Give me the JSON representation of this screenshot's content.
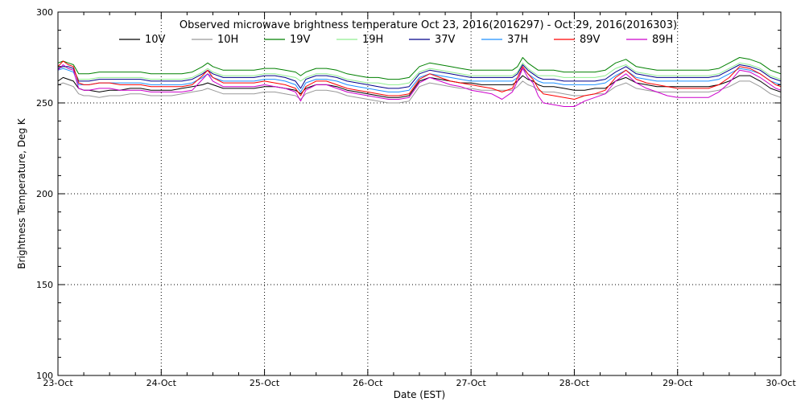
{
  "chart_data": {
    "type": "line",
    "title": "Observed microwave brightness temperature Oct 23, 2016(2016297) - Oct 29, 2016(2016303)",
    "xlabel": "Date (EST)",
    "ylabel": "Brightness Temperature, Deg K",
    "ylim": [
      100,
      300
    ],
    "xlim": [
      0,
      7
    ],
    "yticks": [
      100,
      150,
      200,
      250,
      300
    ],
    "xticks": [
      {
        "x": 0,
        "label": "23-Oct"
      },
      {
        "x": 1,
        "label": "24-Oct"
      },
      {
        "x": 2,
        "label": "25-Oct"
      },
      {
        "x": 3,
        "label": "26-Oct"
      },
      {
        "x": 4,
        "label": "27-Oct"
      },
      {
        "x": 5,
        "label": "28-Oct"
      },
      {
        "x": 6,
        "label": "29-Oct"
      },
      {
        "x": 7,
        "label": "30-Oct"
      }
    ],
    "grid": true,
    "legend_position": "top",
    "x": [
      0.0,
      0.05,
      0.1,
      0.15,
      0.2,
      0.25,
      0.3,
      0.4,
      0.5,
      0.6,
      0.7,
      0.8,
      0.9,
      1.0,
      1.1,
      1.2,
      1.3,
      1.4,
      1.45,
      1.5,
      1.6,
      1.7,
      1.8,
      1.9,
      2.0,
      2.1,
      2.2,
      2.3,
      2.35,
      2.4,
      2.5,
      2.6,
      2.7,
      2.8,
      2.9,
      3.0,
      3.1,
      3.2,
      3.3,
      3.4,
      3.5,
      3.6,
      3.7,
      3.8,
      3.9,
      4.0,
      4.1,
      4.2,
      4.3,
      4.4,
      4.45,
      4.5,
      4.55,
      4.6,
      4.65,
      4.7,
      4.8,
      4.9,
      5.0,
      5.1,
      5.2,
      5.3,
      5.4,
      5.5,
      5.6,
      5.7,
      5.8,
      5.9,
      6.0,
      6.1,
      6.2,
      6.3,
      6.4,
      6.5,
      6.6,
      6.7,
      6.8,
      6.85,
      6.9,
      6.95,
      7.0
    ],
    "series": [
      {
        "name": "10V",
        "color": "#000000",
        "values": [
          262,
          264,
          263,
          262,
          258,
          257,
          257,
          256,
          257,
          257,
          258,
          258,
          257,
          257,
          257,
          258,
          259,
          260,
          261,
          260,
          258,
          258,
          258,
          258,
          259,
          259,
          258,
          257,
          255,
          258,
          260,
          260,
          259,
          257,
          256,
          255,
          254,
          253,
          253,
          254,
          262,
          264,
          263,
          262,
          261,
          261,
          260,
          260,
          260,
          260,
          262,
          265,
          263,
          262,
          260,
          259,
          259,
          258,
          257,
          257,
          258,
          258,
          262,
          264,
          261,
          260,
          259,
          259,
          259,
          259,
          259,
          259,
          260,
          262,
          265,
          265,
          262,
          260,
          258,
          257,
          256
        ]
      },
      {
        "name": "10H",
        "color": "#999999",
        "values": [
          260,
          261,
          260,
          259,
          255,
          254,
          254,
          253,
          254,
          254,
          255,
          255,
          254,
          254,
          254,
          255,
          256,
          257,
          258,
          257,
          255,
          255,
          255,
          255,
          256,
          256,
          255,
          254,
          252,
          255,
          257,
          257,
          256,
          254,
          253,
          252,
          251,
          250,
          250,
          251,
          259,
          261,
          260,
          259,
          258,
          258,
          257,
          257,
          257,
          257,
          259,
          262,
          260,
          259,
          257,
          256,
          256,
          255,
          254,
          254,
          255,
          255,
          259,
          261,
          258,
          257,
          256,
          256,
          256,
          256,
          256,
          256,
          257,
          259,
          262,
          262,
          259,
          257,
          255,
          254,
          253
        ]
      },
      {
        "name": "19V",
        "color": "#008000",
        "values": [
          272,
          273,
          272,
          271,
          266,
          266,
          266,
          267,
          267,
          267,
          267,
          267,
          266,
          266,
          266,
          266,
          267,
          270,
          272,
          270,
          268,
          268,
          268,
          268,
          269,
          269,
          268,
          267,
          265,
          267,
          269,
          269,
          268,
          266,
          265,
          264,
          264,
          263,
          263,
          264,
          270,
          272,
          271,
          270,
          269,
          268,
          268,
          268,
          268,
          268,
          270,
          275,
          272,
          270,
          268,
          268,
          268,
          267,
          267,
          267,
          267,
          268,
          272,
          274,
          270,
          269,
          268,
          268,
          268,
          268,
          268,
          268,
          269,
          272,
          275,
          274,
          272,
          270,
          268,
          267,
          266
        ]
      },
      {
        "name": "19H",
        "color": "#90ee90",
        "values": [
          270,
          270,
          269,
          268,
          263,
          263,
          263,
          264,
          264,
          264,
          264,
          264,
          263,
          263,
          263,
          263,
          264,
          267,
          269,
          267,
          265,
          265,
          265,
          265,
          266,
          266,
          265,
          264,
          262,
          264,
          266,
          266,
          265,
          263,
          262,
          261,
          261,
          260,
          260,
          261,
          267,
          269,
          268,
          267,
          266,
          265,
          265,
          265,
          265,
          265,
          267,
          272,
          269,
          267,
          265,
          265,
          265,
          264,
          264,
          264,
          264,
          265,
          269,
          271,
          267,
          266,
          265,
          265,
          265,
          265,
          265,
          265,
          266,
          269,
          272,
          271,
          269,
          267,
          265,
          264,
          263
        ]
      },
      {
        "name": "37V",
        "color": "#00008b",
        "values": [
          269,
          270,
          270,
          269,
          262,
          262,
          262,
          263,
          263,
          263,
          263,
          263,
          262,
          262,
          262,
          262,
          263,
          266,
          268,
          266,
          264,
          264,
          264,
          264,
          265,
          265,
          264,
          262,
          258,
          263,
          265,
          265,
          264,
          262,
          261,
          260,
          259,
          258,
          258,
          259,
          266,
          268,
          267,
          266,
          265,
          264,
          264,
          264,
          264,
          264,
          266,
          271,
          268,
          266,
          264,
          263,
          263,
          262,
          262,
          262,
          262,
          263,
          267,
          270,
          266,
          265,
          264,
          264,
          264,
          264,
          264,
          264,
          265,
          268,
          271,
          270,
          268,
          266,
          264,
          263,
          262
        ]
      },
      {
        "name": "37H",
        "color": "#1e90ff",
        "values": [
          268,
          269,
          268,
          267,
          260,
          260,
          260,
          261,
          261,
          261,
          261,
          261,
          260,
          260,
          260,
          260,
          261,
          264,
          266,
          264,
          262,
          262,
          262,
          262,
          263,
          263,
          262,
          260,
          256,
          261,
          263,
          263,
          262,
          260,
          259,
          258,
          257,
          256,
          256,
          257,
          264,
          266,
          265,
          264,
          263,
          262,
          262,
          262,
          262,
          262,
          264,
          269,
          266,
          264,
          262,
          261,
          261,
          260,
          260,
          260,
          260,
          261,
          265,
          268,
          264,
          263,
          262,
          262,
          262,
          262,
          262,
          262,
          263,
          266,
          269,
          268,
          266,
          264,
          262,
          261,
          260
        ]
      },
      {
        "name": "89V",
        "color": "#ff0000",
        "values": [
          270,
          273,
          271,
          270,
          261,
          260,
          260,
          261,
          261,
          260,
          260,
          260,
          259,
          259,
          259,
          259,
          260,
          265,
          268,
          264,
          261,
          261,
          261,
          261,
          262,
          261,
          260,
          258,
          254,
          259,
          262,
          262,
          260,
          258,
          257,
          256,
          255,
          254,
          254,
          255,
          263,
          266,
          264,
          262,
          261,
          260,
          259,
          258,
          256,
          258,
          264,
          270,
          266,
          263,
          258,
          255,
          254,
          253,
          252,
          254,
          255,
          257,
          264,
          268,
          263,
          261,
          260,
          259,
          258,
          258,
          258,
          258,
          260,
          264,
          270,
          269,
          266,
          264,
          262,
          260,
          259
        ]
      },
      {
        "name": "89H",
        "color": "#cc00cc",
        "values": [
          268,
          271,
          269,
          268,
          258,
          257,
          257,
          258,
          258,
          257,
          257,
          257,
          256,
          256,
          256,
          256,
          257,
          263,
          266,
          262,
          259,
          259,
          259,
          259,
          260,
          259,
          258,
          256,
          251,
          257,
          260,
          260,
          258,
          256,
          255,
          254,
          253,
          252,
          252,
          253,
          261,
          264,
          262,
          260,
          259,
          257,
          256,
          255,
          252,
          256,
          262,
          269,
          264,
          261,
          254,
          250,
          249,
          248,
          248,
          251,
          253,
          255,
          262,
          266,
          261,
          258,
          256,
          254,
          253,
          253,
          253,
          253,
          256,
          261,
          268,
          267,
          264,
          262,
          260,
          258,
          257
        ]
      }
    ]
  }
}
